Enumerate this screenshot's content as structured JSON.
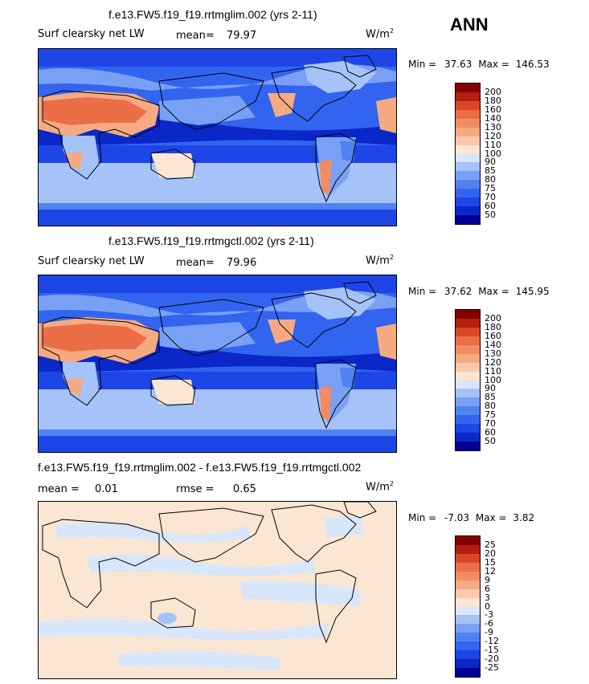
{
  "season": "ANN",
  "colors": {
    "abs_palette": [
      "#000096",
      "#0a28c8",
      "#1e46e6",
      "#3264f0",
      "#5082f0",
      "#78a0f5",
      "#a5c3f8",
      "#d7e6fa",
      "#fae6d2",
      "#fac8aa",
      "#f5aa82",
      "#f08c64",
      "#eb6e46",
      "#dc4628",
      "#b41e0f",
      "#870000"
    ],
    "diff_palette": [
      "#000096",
      "#0a28c8",
      "#1e46e6",
      "#3264f0",
      "#5082f0",
      "#78a0f5",
      "#a5c3f8",
      "#d7e6fa",
      "#fae6d2",
      "#fac8aa",
      "#f5aa82",
      "#f08c64",
      "#eb6e46",
      "#dc4628",
      "#b41e0f",
      "#870000"
    ]
  },
  "chart_data": [
    {
      "type": "heatmap",
      "title": "f.e13.FW5.f19_f19.rrtmglim.002 (yrs 2-11)",
      "variable": "Surf clearsky net LW",
      "mean_label": "mean=",
      "mean_value": "79.97",
      "units_label": "W/m",
      "units_exp": "2",
      "min_label": "Min =",
      "min_value": "37.63",
      "max_label": "Max =",
      "max_value": "146.53",
      "colorbar_levels": [
        "50",
        "60",
        "70",
        "75",
        "80",
        "85",
        "90",
        "100",
        "110",
        "120",
        "130",
        "140",
        "160",
        "180",
        "200"
      ]
    },
    {
      "type": "heatmap",
      "title": "f.e13.FW5.f19_f19.rrtmgctl.002 (yrs 2-11)",
      "variable": "Surf clearsky net LW",
      "mean_label": "mean=",
      "mean_value": "79.96",
      "units_label": "W/m",
      "units_exp": "2",
      "min_label": "Min =",
      "min_value": "37.62",
      "max_label": "Max =",
      "max_value": "145.95",
      "colorbar_levels": [
        "50",
        "60",
        "70",
        "75",
        "80",
        "85",
        "90",
        "100",
        "110",
        "120",
        "130",
        "140",
        "160",
        "180",
        "200"
      ]
    },
    {
      "type": "heatmap",
      "title": "f.e13.FW5.f19_f19.rrtmglim.002 - f.e13.FW5.f19_f19.rrtmgctl.002",
      "mean_label": "mean =",
      "mean_value": "0.01",
      "rmse_label": "rmse =",
      "rmse_value": "0.65",
      "units_label": "W/m",
      "units_exp": "2",
      "min_label": "Min =",
      "min_value": "-7.03",
      "max_label": "Max =",
      "max_value": "3.82",
      "colorbar_levels": [
        "-25",
        "-20",
        "-15",
        "-12",
        "-9",
        "-6",
        "-3",
        "0",
        "3",
        "6",
        "9",
        "12",
        "15",
        "20",
        "25"
      ]
    }
  ]
}
